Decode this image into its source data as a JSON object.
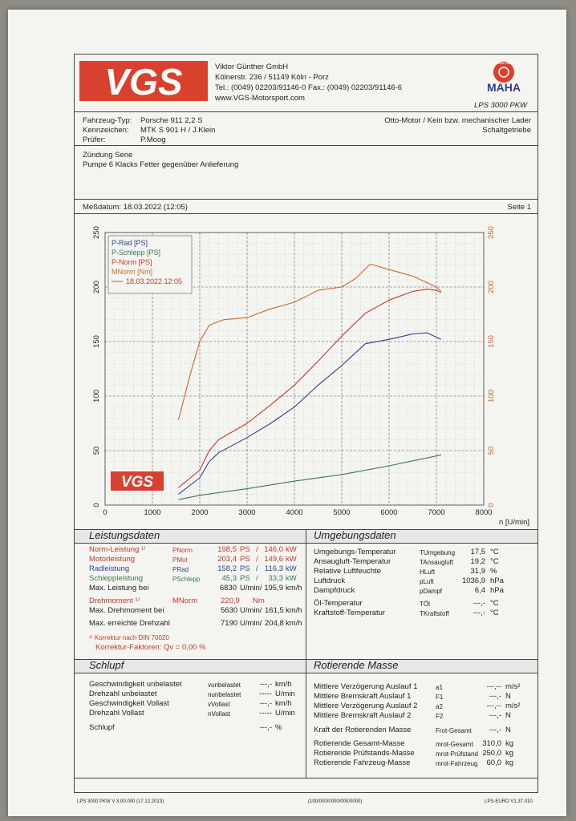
{
  "header": {
    "logo_text": "VGS",
    "company": "Viktor Günther GmbH",
    "address": "Kölnerstr. 236  /  51149 Köln - Porz",
    "phone_fax": "Tel.: (0049) 02203/91146-0    Fax.: (0049) 02203/91146-6",
    "web": "www.VGS-Motorsport.com",
    "maha_badge": "Maschinenbau Haldenwang",
    "maha_text": "MAHA",
    "product": "LPS 3000 PKW"
  },
  "vehicle": {
    "type_label": "Fahrzeug-Typ:",
    "type_value": "Porsche 911 2,2 S",
    "plate_label": "Kennzeichen:",
    "plate_value": "MTK S 901 H  / J.Klein",
    "tester_label": "Prüfer:",
    "tester_value": "P.Moog",
    "engine": "Otto-Motor / Kein bzw. mechanischer Lader",
    "gearbox": "Schaltgetriebe"
  },
  "notes": [
    "Zündung Serie",
    "Pumpe 6 Klacks Fetter gegenüber Anlieferung"
  ],
  "measure": {
    "date_label": "Meßdatum: 18.03.2022 (12:05)",
    "page_label": "Seite 1"
  },
  "chart_data": {
    "type": "line",
    "xlabel": "n [U/min]",
    "xlim": [
      0,
      8000
    ],
    "ylim_left": [
      0,
      250
    ],
    "ylim_right": [
      0,
      250
    ],
    "x_ticks": [
      0,
      1000,
      2000,
      3000,
      4000,
      5000,
      6000,
      7000,
      8000
    ],
    "y_ticks": [
      0,
      50,
      100,
      150,
      200,
      250
    ],
    "grid": true,
    "legend_position": "top-left",
    "legend": [
      {
        "label": "P-Rad [PS]",
        "color": "#2e3f8f"
      },
      {
        "label": "P-Schlepp [PS]",
        "color": "#3a7a4a"
      },
      {
        "label": "P-Norm [PS]",
        "color": "#c0392b"
      },
      {
        "label": "MNorm [Nm]",
        "color": "#c76a2a"
      },
      {
        "label": "18.03.2022 12:05",
        "color": "#c0392b"
      }
    ],
    "series": [
      {
        "name": "P-Rad [PS]",
        "color": "#2e3f8f",
        "x": [
          1550,
          2000,
          2200,
          2400,
          3000,
          3500,
          4000,
          4500,
          5000,
          5500,
          6000,
          6500,
          6800,
          7100
        ],
        "y": [
          10,
          25,
          40,
          48,
          62,
          75,
          90,
          110,
          128,
          148,
          152,
          157,
          158,
          152
        ]
      },
      {
        "name": "P-Schlepp [PS]",
        "color": "#3a7a4a",
        "x": [
          1550,
          2000,
          3000,
          4000,
          5000,
          6000,
          7100
        ],
        "y": [
          5,
          9,
          15,
          22,
          28,
          36,
          46
        ]
      },
      {
        "name": "P-Norm [PS]",
        "color": "#c0392b",
        "x": [
          1550,
          2000,
          2200,
          2400,
          3000,
          3500,
          4000,
          4500,
          5000,
          5500,
          6000,
          6500,
          6800,
          7000,
          7100
        ],
        "y": [
          16,
          32,
          50,
          60,
          75,
          92,
          110,
          132,
          155,
          176,
          188,
          196,
          198,
          197,
          195
        ]
      },
      {
        "name": "MNorm [Nm]",
        "color": "#c76a2a",
        "x": [
          1550,
          1800,
          2000,
          2200,
          2500,
          3000,
          3500,
          4000,
          4500,
          5000,
          5300,
          5600,
          6000,
          6500,
          7000,
          7100
        ],
        "y": [
          78,
          120,
          150,
          165,
          170,
          172,
          180,
          186,
          197,
          200,
          208,
          221,
          216,
          210,
          200,
          196
        ]
      }
    ]
  },
  "chart_logo": "VGS",
  "leistung": {
    "title": "Leistungsdaten",
    "rows": [
      {
        "label": "Norm-Leistung ¹⁾",
        "sym": "PNorm",
        "v1": "198,5",
        "u1": "PS",
        "sep": "/",
        "v2": "146,0",
        "u2": "kW",
        "color": "#c0392b"
      },
      {
        "label": "Motorleistung",
        "sym": "PMot",
        "v1": "203,4",
        "u1": "PS",
        "sep": "/",
        "v2": "149,6",
        "u2": "kW",
        "color": "#c0392b"
      },
      {
        "label": "Radleistung",
        "sym": "PRad",
        "v1": "158,2",
        "u1": "PS",
        "sep": "/",
        "v2": "116,3",
        "u2": "kW",
        "color": "#2e3f8f"
      },
      {
        "label": "Schleppleistung",
        "sym": "PSchlepp",
        "v1": "45,3",
        "u1": "PS",
        "sep": "/",
        "v2": "33,3",
        "u2": "kW",
        "color": "#3a7a4a"
      },
      {
        "label": "Max. Leistung bei",
        "sym": "",
        "v1": "6830",
        "u1": "U/min/",
        "sep": "",
        "v2": "195,9",
        "u2": "km/h",
        "color": "#222"
      }
    ],
    "torque_label": "Drehmoment ¹⁾",
    "torque_sym": "MNorm",
    "torque_val": "220,9",
    "torque_unit": "Nm",
    "maxtorque_label": "Max. Drehmoment bei",
    "maxtorque_rpm": "5630",
    "maxtorque_unit": "U/min/",
    "maxtorque_speed": "161,5",
    "maxtorque_speed_unit": "km/h",
    "maxrpm_label": "Max. erreichte Drehzahl",
    "maxrpm_val": "7190",
    "maxrpm_unit": "U/min/",
    "maxrpm_speed": "204,8",
    "maxrpm_speed_unit": "km/h",
    "corr1": "¹⁾ Korrektur nach DIN 70020",
    "corr2": "Korrektur-Faktoren: Qv =   0,00 %"
  },
  "umgebung": {
    "title": "Umgebungsdaten",
    "rows": [
      {
        "label": "Umgebungs-Temperatur",
        "sym": "TUmgebung",
        "val": "17,5",
        "unit": "°C"
      },
      {
        "label": "Ansaugluft-Temperatur",
        "sym": "TAnsaugluft",
        "val": "19,2",
        "unit": "°C"
      },
      {
        "label": "Relative Luftfeuchte",
        "sym": "HLuft",
        "val": "31,9",
        "unit": "%"
      },
      {
        "label": "Luftdruck",
        "sym": "pLuft",
        "val": "1036,9",
        "unit": "hPa"
      },
      {
        "label": "Dampfdruck",
        "sym": "pDampf",
        "val": "6,4",
        "unit": "hPa"
      },
      {
        "label": "Öl-Temperatur",
        "sym": "TÖl",
        "val": "---,-",
        "unit": "°C"
      },
      {
        "label": "Kraftstoff-Temperatur",
        "sym": "TKraftstoff",
        "val": "---,-",
        "unit": "°C"
      }
    ]
  },
  "schlupf": {
    "title": "Schlupf",
    "rows": [
      {
        "label": "Geschwindigkeit unbelastet",
        "sym": "vunbelastet",
        "val": "---,-",
        "unit": "km/h"
      },
      {
        "label": "Drehzahl unbelastet",
        "sym": "nunbelastet",
        "val": "-----",
        "unit": "U/min"
      },
      {
        "label": "Geschwindigkeit Vollast",
        "sym": "vVollast",
        "val": "---,-",
        "unit": "km/h"
      },
      {
        "label": "Drehzahl Vollast",
        "sym": "nVollast",
        "val": "-----",
        "unit": "U/min"
      },
      {
        "label": "Schlupf",
        "sym": "",
        "val": "---,-",
        "unit": "%"
      }
    ]
  },
  "rotierende": {
    "title": "Rotierende Masse",
    "rows": [
      {
        "label": "Mittlere Verzögerung Auslauf 1",
        "sym": "a1",
        "val": "---,--",
        "unit": "m/s²"
      },
      {
        "label": "Mittlere Bremskraft Auslauf 1",
        "sym": "F1",
        "val": "---,-",
        "unit": "N"
      },
      {
        "label": "Mittlere Verzögerung Auslauf 2",
        "sym": "a2",
        "val": "---,--",
        "unit": "m/s²"
      },
      {
        "label": "Mittlere Bremskraft Auslauf 2",
        "sym": "F2",
        "val": "---,-",
        "unit": "N"
      },
      {
        "label": "Kraft der Rotierenden Masse",
        "sym": "Frot-Gesamt",
        "val": "---,-",
        "unit": "N"
      },
      {
        "label": "Rotierende Gesamt-Masse",
        "sym": "mrot-Gesamt",
        "val": "310,0",
        "unit": "kg"
      },
      {
        "label": "Rotierende Prüfstands-Masse",
        "sym": "mrot-Prüfstand",
        "val": "250,0",
        "unit": "kg"
      },
      {
        "label": "Rotierende Fahrzeug-Masse",
        "sym": "mrot-Fahrzeug",
        "val": "60,0",
        "unit": "kg"
      }
    ]
  },
  "footer": {
    "left": "LPS 3000 PKW V 3.00.000 (17.12.2013)",
    "center": "(100/000/0000/000/0000)",
    "right": "LPS-EURO V1.37.010"
  }
}
